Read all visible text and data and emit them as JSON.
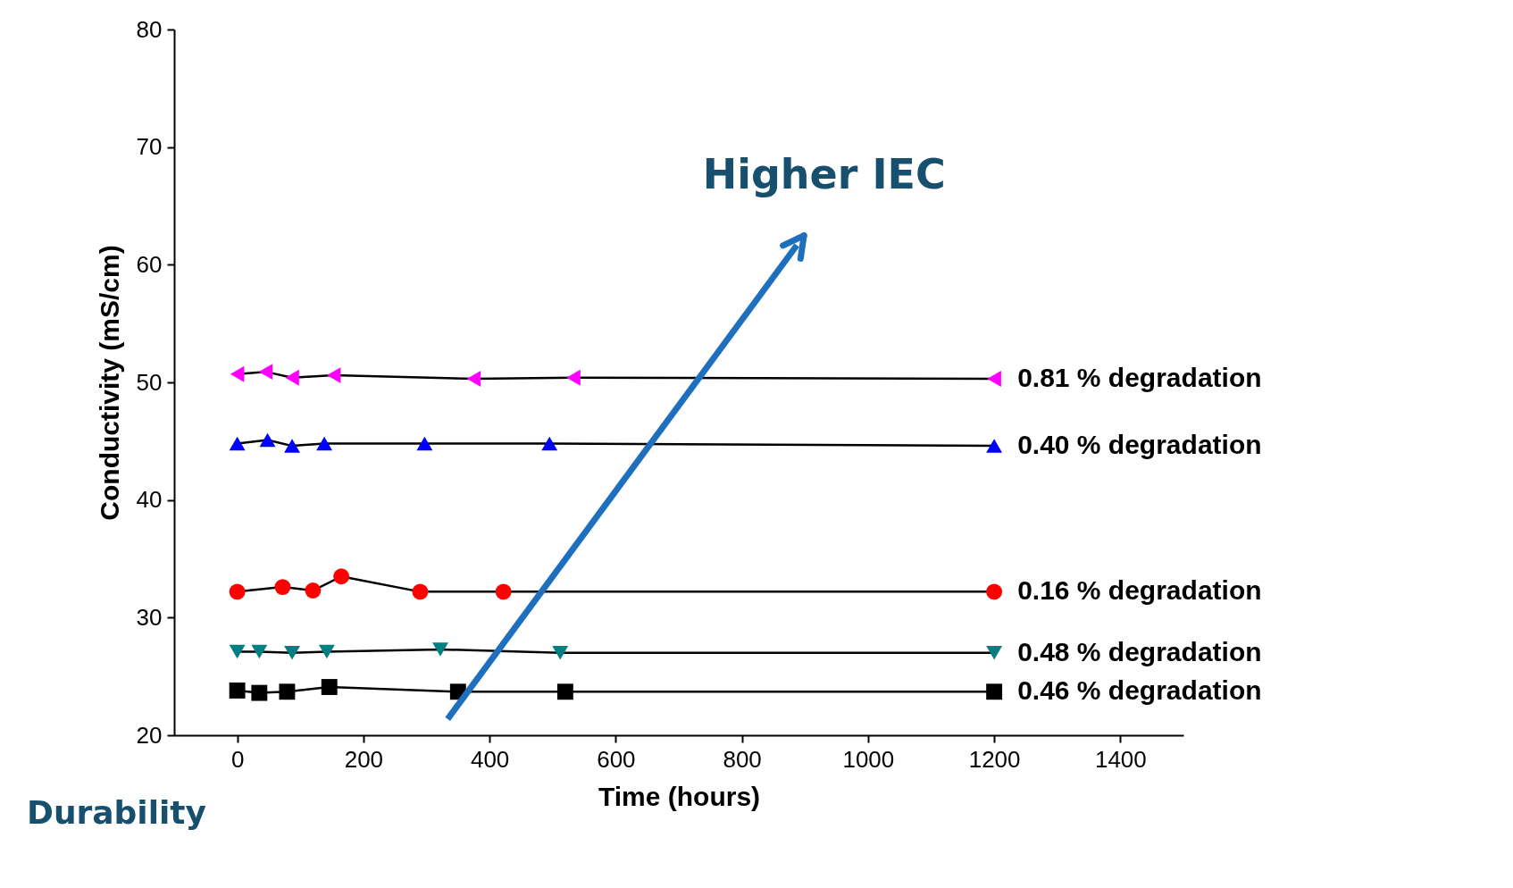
{
  "chart_data": {
    "type": "line",
    "xlabel": "Time (hours)",
    "ylabel": "Conductivity (mS/cm)",
    "xlim": [
      -100,
      1500
    ],
    "xticks": [
      0,
      200,
      400,
      600,
      800,
      1000,
      1200,
      1400
    ],
    "ylim": [
      20,
      80
    ],
    "yticks": [
      20,
      30,
      40,
      50,
      60,
      70,
      80
    ],
    "grid": false,
    "annotations": [
      "Higher IEC",
      "Durability"
    ],
    "series": [
      {
        "name": "0.81 % degradation",
        "color": "#ff00ff",
        "marker": "triangle-left",
        "x": [
          0,
          45,
          87,
          153,
          375,
          533,
          1200
        ],
        "values": [
          50.7,
          50.9,
          50.4,
          50.6,
          50.3,
          50.4,
          50.3
        ]
      },
      {
        "name": "0.40 % degradation",
        "color": "#0000ff",
        "marker": "triangle",
        "x": [
          0,
          48,
          87,
          138,
          297,
          495,
          1200
        ],
        "values": [
          44.8,
          45.1,
          44.6,
          44.8,
          44.8,
          44.8,
          44.6
        ]
      },
      {
        "name": "0.16 % degradation",
        "color": "#ff0000",
        "marker": "circle",
        "x": [
          0,
          72,
          120,
          165,
          290,
          422,
          1200
        ],
        "values": [
          32.2,
          32.6,
          32.3,
          33.5,
          32.2,
          32.2,
          32.2
        ]
      },
      {
        "name": "0.48 % degradation",
        "color": "#008080",
        "marker": "triangle-down",
        "x": [
          0,
          35,
          87,
          142,
          322,
          512,
          1200
        ],
        "values": [
          27.1,
          27.1,
          27.0,
          27.1,
          27.3,
          27.0,
          27.0
        ]
      },
      {
        "name": "0.46 % degradation",
        "color": "#000000",
        "marker": "square",
        "x": [
          0,
          35,
          79,
          146,
          350,
          520,
          1200
        ],
        "values": [
          23.8,
          23.6,
          23.7,
          24.1,
          23.7,
          23.7,
          23.7
        ]
      }
    ]
  }
}
